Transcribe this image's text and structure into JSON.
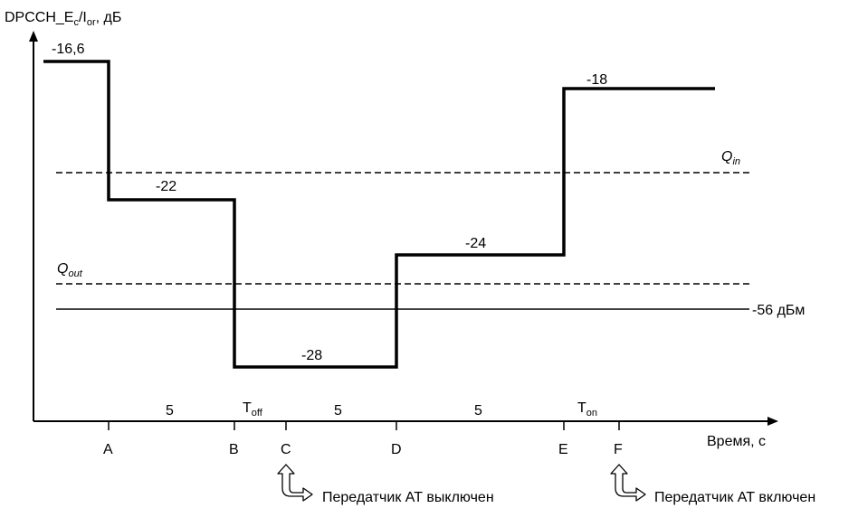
{
  "y_axis": {
    "label_main": "DPCCH_E",
    "label_sub_c": "c",
    "label_slash": "/I",
    "label_sub_or": "or",
    "label_unit": ", дБ"
  },
  "x_axis": {
    "label": "Время, с"
  },
  "levels": {
    "l1": "-16,6",
    "l2": "-22",
    "l3": "-28",
    "l4": "-24",
    "l5": "-18"
  },
  "thresholds": {
    "qin_main": "Q",
    "qin_sub": "in",
    "qout_main": "Q",
    "qout_sub": "out",
    "ref_label": "-56 дБм"
  },
  "points": {
    "a": "A",
    "b": "B",
    "c": "C",
    "d": "D",
    "e": "E",
    "f": "F"
  },
  "durations": {
    "ab": "5",
    "cd": "5",
    "de": "5",
    "toff_main": "T",
    "toff_sub": "off",
    "ton_main": "T",
    "ton_sub": "on"
  },
  "notes": {
    "tx_off": "Передатчик АТ выключен",
    "tx_on": "Передатчик АТ включен"
  }
}
